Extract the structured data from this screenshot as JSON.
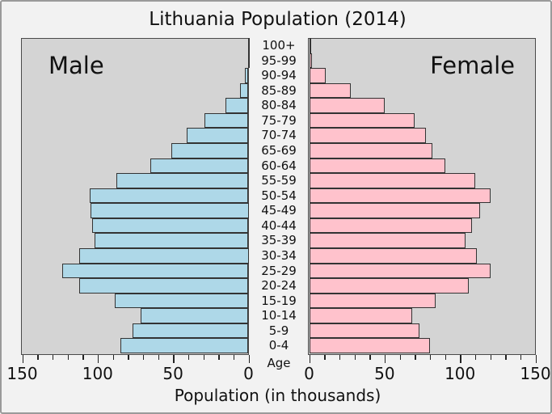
{
  "title": "Lithuania Population (2014)",
  "left_panel_label": "Male",
  "right_panel_label": "Female",
  "axis": {
    "xlabel": "Population (in thousands)",
    "age_axis_label": "Age",
    "male_tick_labels": [
      "150",
      "100",
      "50",
      "0"
    ],
    "female_tick_labels": [
      "0",
      "50",
      "100",
      "150"
    ],
    "minor_tick_step": 10,
    "major_tick_step": 50
  },
  "colors": {
    "male_bar": "#aed8e8",
    "female_bar": "#ffc2cc",
    "bar_border": "#333333",
    "panel_background": "#d4d4d4",
    "panel_border": "#4a4a4a",
    "figure_background": "#f2f2f2",
    "figure_border": "#9a9a9a"
  },
  "chart_data": {
    "type": "bar",
    "subtype": "population-pyramid",
    "title": "Lithuania Population (2014)",
    "xlabel": "Population (in thousands)",
    "age_axis_label": "Age",
    "xlim": [
      0,
      150
    ],
    "unit": "thousands of people",
    "grid": false,
    "age_groups": [
      "100+",
      "95-99",
      "90-94",
      "85-89",
      "80-84",
      "75-79",
      "70-74",
      "65-69",
      "60-64",
      "55-59",
      "50-54",
      "45-49",
      "40-44",
      "35-39",
      "30-34",
      "25-29",
      "20-24",
      "15-19",
      "10-14",
      "5-9",
      "0-4"
    ],
    "series": [
      {
        "name": "Male",
        "side": "left",
        "values": [
          0.1,
          0.5,
          2.5,
          5.5,
          15.5,
          29,
          41,
          51,
          65,
          87.5,
          105.5,
          105,
          103.5,
          102,
          112.5,
          123.5,
          112,
          88.5,
          71.5,
          77,
          85
        ]
      },
      {
        "name": "Female",
        "side": "right",
        "values": [
          0.7,
          2,
          11,
          27.5,
          50,
          70,
          77.5,
          81.5,
          90,
          110,
          120,
          113.5,
          108,
          103.5,
          111,
          120,
          106,
          84,
          68.5,
          73,
          80
        ]
      }
    ]
  }
}
